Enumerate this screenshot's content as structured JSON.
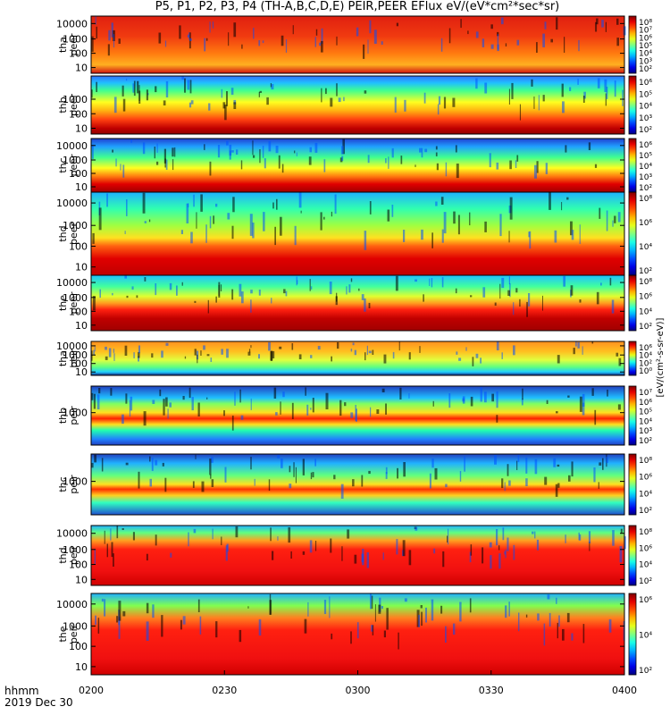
{
  "title": "P5, P1, P2, P3, P4 (TH-A,B,C,D,E) PEIR,PEER EFlux eV/(eV*cm²*sec*sr)",
  "time_axis": {
    "label_line1": "hhmm",
    "label_line2": "2019 Dec 30",
    "ticks": [
      "0200",
      "0230",
      "0300",
      "0330",
      "0400"
    ]
  },
  "colorbar_units": "[eV/(cm²-s-sr-eV)]",
  "chart_data": [
    {
      "type": "heatmap",
      "probe": "tha",
      "species": "peer",
      "ylabel": [
        "tha",
        "peer"
      ],
      "yscale": "log",
      "y_ticks": [
        "10",
        "100",
        "1000",
        "10000"
      ],
      "colorbar_ticks": [
        "10²",
        "10³",
        "10⁴",
        "10⁵",
        "10⁶",
        "10⁷",
        "10⁸"
      ],
      "description_profile": [
        {
          "energy": 10,
          "level": "red"
        },
        {
          "energy": 100,
          "level": "red-orange"
        },
        {
          "energy": 1000,
          "level": "red"
        },
        {
          "energy": 10000,
          "level": "red"
        }
      ],
      "x_range": [
        "0200",
        "0400"
      ]
    },
    {
      "type": "heatmap",
      "probe": "thb",
      "species": "peer",
      "ylabel": [
        "thb",
        "peer"
      ],
      "yscale": "log",
      "y_ticks": [
        "10",
        "100",
        "1000"
      ],
      "colorbar_ticks": [
        "10²",
        "10³",
        "10⁴",
        "10⁵",
        "10⁶"
      ],
      "x_range": [
        "0200",
        "0400"
      ]
    },
    {
      "type": "heatmap",
      "probe": "thc",
      "species": "peer",
      "ylabel": [
        "thc",
        "peer"
      ],
      "yscale": "log",
      "y_ticks": [
        "10",
        "100",
        "1000",
        "10000"
      ],
      "colorbar_ticks": [
        "10²",
        "10³",
        "10⁴",
        "10⁵",
        "10⁶"
      ],
      "x_range": [
        "0200",
        "0400"
      ]
    },
    {
      "type": "heatmap",
      "probe": "thd",
      "species": "peer",
      "ylabel": [
        "thd",
        "peer"
      ],
      "yscale": "log",
      "y_ticks": [
        "10",
        "100",
        "1000",
        "10000"
      ],
      "colorbar_ticks": [
        "10²",
        "10⁴",
        "10⁶",
        "10⁸"
      ],
      "x_range": [
        "0200",
        "0400"
      ]
    },
    {
      "type": "heatmap",
      "probe": "the",
      "species": "peer",
      "ylabel": [
        "the",
        "peer"
      ],
      "yscale": "log",
      "y_ticks": [
        "10",
        "100",
        "1000",
        "10000"
      ],
      "colorbar_ticks": [
        "10²",
        "10⁴",
        "10⁶",
        "10⁸"
      ],
      "x_range": [
        "0200",
        "0400"
      ]
    },
    {
      "type": "heatmap",
      "probe": "tha",
      "species": "peir",
      "ylabel": [
        "tha",
        "peir"
      ],
      "yscale": "log",
      "y_ticks": [
        "10",
        "100",
        "1000",
        "10000"
      ],
      "colorbar_ticks": [
        "10⁰",
        "10²",
        "10⁴",
        "10⁶"
      ],
      "x_range": [
        "0200",
        "0400"
      ]
    },
    {
      "type": "heatmap",
      "probe": "thb",
      "species": "peir",
      "ylabel": [
        "thb",
        "peir"
      ],
      "yscale": "log",
      "y_ticks": [
        "1000"
      ],
      "colorbar_ticks": [
        "10²",
        "10³",
        "10⁴",
        "10⁵",
        "10⁶",
        "10⁷"
      ],
      "x_range": [
        "0200",
        "0400"
      ]
    },
    {
      "type": "heatmap",
      "probe": "thc",
      "species": "peir",
      "ylabel": [
        "thc",
        "peir"
      ],
      "yscale": "log",
      "y_ticks": [
        "1000"
      ],
      "colorbar_ticks": [
        "10²",
        "10⁴",
        "10⁶",
        "10⁸"
      ],
      "x_range": [
        "0200",
        "0400"
      ]
    },
    {
      "type": "heatmap",
      "probe": "thd",
      "species": "peir",
      "ylabel": [
        "thd",
        "peir"
      ],
      "yscale": "log",
      "y_ticks": [
        "10",
        "100",
        "1000",
        "10000"
      ],
      "colorbar_ticks": [
        "10²",
        "10⁴",
        "10⁶",
        "10⁸"
      ],
      "x_range": [
        "0200",
        "0400"
      ]
    },
    {
      "type": "heatmap",
      "probe": "the",
      "species": "peir",
      "ylabel": [
        "the",
        "peir"
      ],
      "yscale": "log",
      "y_ticks": [
        "10",
        "100",
        "1000",
        "10000"
      ],
      "colorbar_ticks": [
        "10²",
        "10⁴",
        "10⁶"
      ],
      "x_range": [
        "0200",
        "0400"
      ]
    }
  ]
}
